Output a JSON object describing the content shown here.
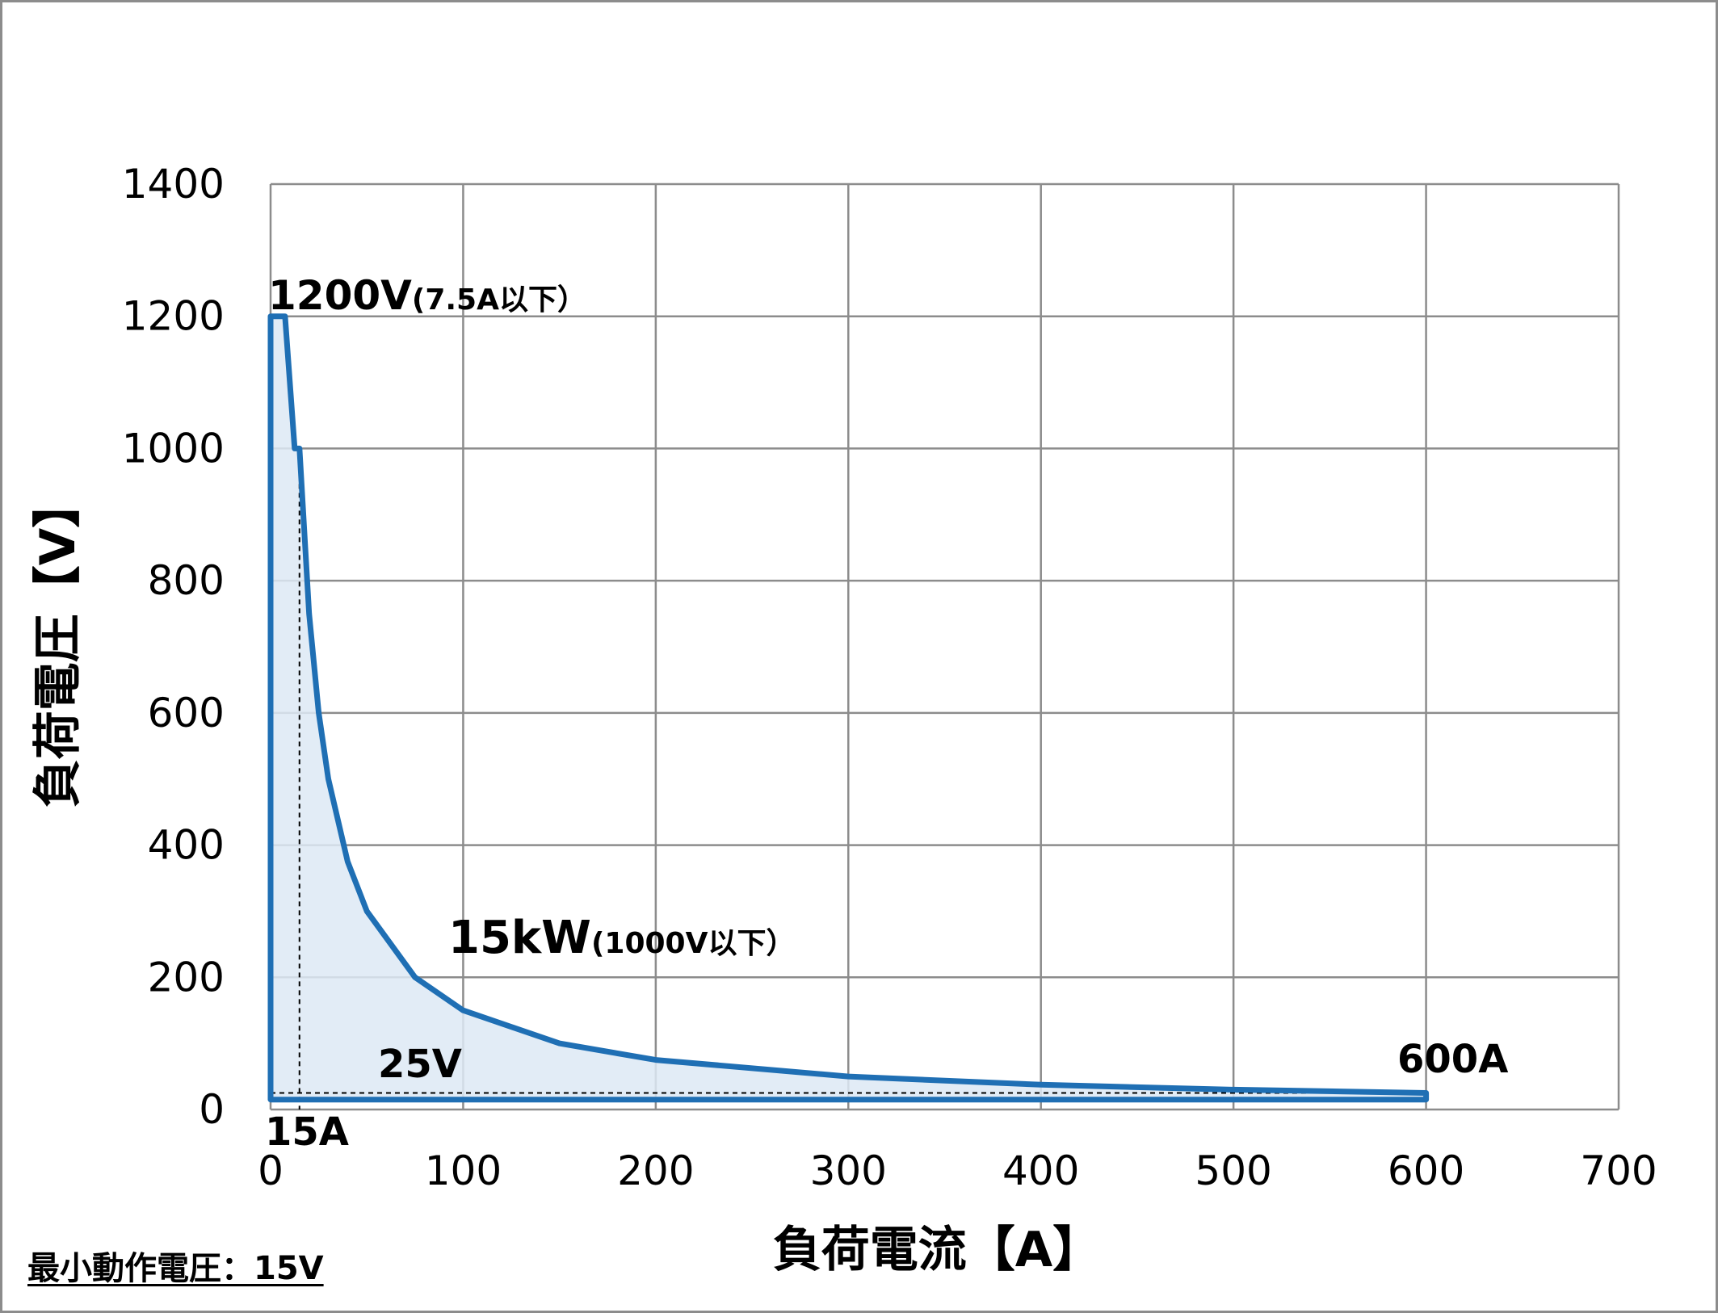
{
  "chart_data": {
    "type": "area",
    "xlabel": "負荷電流【A】",
    "ylabel": "負荷電圧【V】",
    "xlim": [
      0,
      700
    ],
    "ylim": [
      0,
      1400
    ],
    "x_ticks": [
      "0",
      "100",
      "200",
      "300",
      "400",
      "500",
      "600",
      "700"
    ],
    "y_ticks": [
      "0",
      "200",
      "400",
      "600",
      "800",
      "1000",
      "1200",
      "1400"
    ],
    "grid": true,
    "colors": {
      "line": "#1f6fb4",
      "fill": "#dde9f5",
      "grid": "#8c8c8c"
    },
    "series": [
      {
        "x": [
          0,
          7.5,
          12.5,
          15,
          20,
          25,
          30,
          40,
          50,
          75,
          100,
          150,
          200,
          300,
          400,
          500,
          600,
          600,
          0
        ],
        "y": [
          1200,
          1200,
          1000,
          1000,
          750,
          600,
          500,
          375,
          300,
          200,
          150,
          100,
          75,
          50,
          37.5,
          30,
          25,
          15,
          15
        ]
      }
    ],
    "annotations": {
      "max_voltage": {
        "main": "1200V",
        "small": "(7.5A以下）"
      },
      "power": {
        "main": "15kW",
        "small": "(1000V以下）"
      },
      "voltage_25": "25V",
      "current_15": "15A",
      "current_600": "600A"
    },
    "reference_lines": {
      "x": 15,
      "y": 25
    }
  },
  "footnote": "最小動作電圧：15V"
}
